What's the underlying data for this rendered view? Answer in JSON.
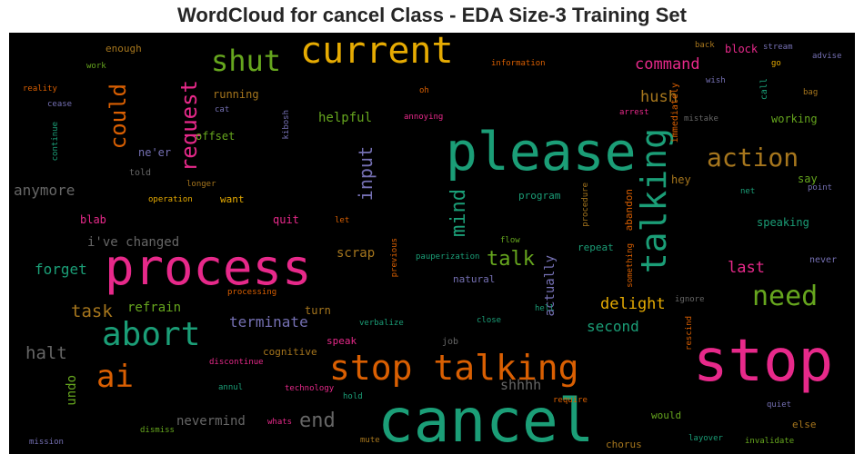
{
  "title": "WordCloud for cancel Class - EDA Size-3 Training Set",
  "colors": {
    "teal": "#1b9e77",
    "pink": "#e7298a",
    "orange": "#d95f02",
    "mustard": "#e6ab02",
    "lime": "#66a61e",
    "purple": "#7570b3",
    "brown": "#a6761d",
    "gray": "#666666"
  },
  "words": {
    "cancel": "cancel",
    "stop": "stop",
    "process": "process",
    "please": "please",
    "stop_talking": "stop talking",
    "current": "current",
    "talking": "talking",
    "abort": "abort",
    "need": "need",
    "ai": "ai",
    "shut": "shut",
    "action": "action",
    "request": "request",
    "could": "could",
    "mind": "mind",
    "talk": "talk",
    "input": "input",
    "end": "end",
    "command": "command",
    "hush": "hush",
    "delight": "delight",
    "last": "last",
    "halt": "halt",
    "task": "task",
    "forget": "forget",
    "anymore": "anymore",
    "terminate": "terminate",
    "second": "second",
    "shhhh": "shhhh",
    "helpful": "helpful",
    "scrap": "scrap",
    "ive_changed": "i've changed",
    "refrain": "refrain",
    "nevermind": "nevermind",
    "undo": "undo",
    "actually": "actually",
    "running": "running",
    "offset": "offset",
    "enough": "enough",
    "nener": "ne'er",
    "blab": "blab",
    "quit": "quit",
    "want": "want",
    "working": "working",
    "hey": "hey",
    "say": "say",
    "program": "program",
    "abandon": "abandon",
    "repeat": "repeat",
    "speaking": "speaking",
    "immediately": "immediately",
    "call": "call",
    "block": "block",
    "turn": "turn",
    "cognitive": "cognitive",
    "speak": "speak",
    "natural": "natural",
    "would": "would",
    "else": "else",
    "chorus": "chorus",
    "told": "told",
    "longer": "longer",
    "operation": "operation",
    "let": "let",
    "flow": "flow",
    "pauperization": "pauperization",
    "previous": "previous",
    "procedure": "procedure",
    "something": "something",
    "processing": "processing",
    "verbalize": "verbalize",
    "hell": "hell",
    "close": "close",
    "job": "job",
    "discontinue": "discontinue",
    "annul": "annul",
    "technology": "technology",
    "hold": "hold",
    "require": "require",
    "whats": "whats",
    "mute": "mute",
    "dismiss": "dismiss",
    "mission": "mission",
    "layover": "layover",
    "invalidate": "invalidate",
    "quiet": "quiet",
    "rescind": "rescind",
    "ignore": "ignore",
    "never": "never",
    "point": "point",
    "net": "net",
    "mistake": "mistake",
    "arrest": "arrest",
    "wish": "wish",
    "back": "back",
    "stream": "stream",
    "advise": "advise",
    "go": "go",
    "bag": "bag",
    "information": "information",
    "oh": "oh",
    "annoying": "annoying",
    "kibosh": "kibosh",
    "cat": "cat",
    "work": "work",
    "reality": "reality",
    "cease": "cease",
    "continue": "continue"
  }
}
